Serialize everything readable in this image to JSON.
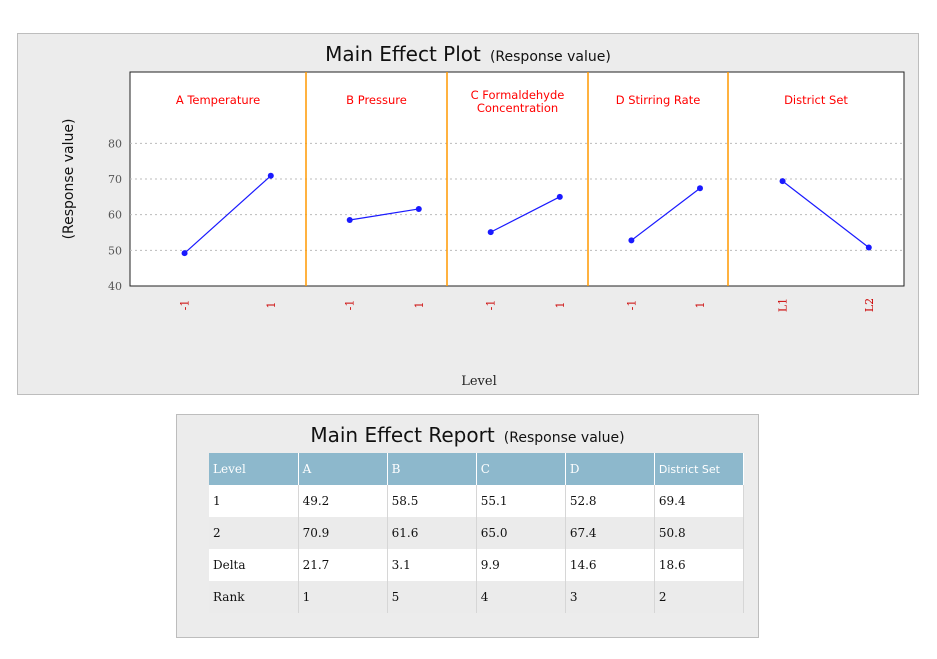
{
  "plot": {
    "title": "Main Effect Plot",
    "subtitle": "(Response value)"
  },
  "chart_data": {
    "type": "line",
    "title": "Main Effect Plot",
    "subtitle": "(Response value)",
    "xlabel": "Level",
    "ylabel": "(Response value)",
    "ylim": [
      40,
      100
    ],
    "yticks": [
      40,
      50,
      60,
      70,
      80
    ],
    "grid": true,
    "panels": [
      {
        "name": "A Temperature",
        "levels": [
          "-1",
          "1"
        ],
        "values": [
          49.2,
          70.9
        ]
      },
      {
        "name": "B Pressure",
        "levels": [
          "-1",
          "1"
        ],
        "values": [
          58.5,
          61.6
        ]
      },
      {
        "name": "C Formaldehyde Concentration",
        "levels": [
          "-1",
          "1"
        ],
        "values": [
          55.1,
          65.0
        ]
      },
      {
        "name": "D Stirring Rate",
        "levels": [
          "-1",
          "1"
        ],
        "values": [
          52.8,
          67.4
        ]
      },
      {
        "name": "District Set",
        "levels": [
          "L1",
          "L2"
        ],
        "values": [
          69.4,
          50.8
        ]
      }
    ],
    "colors": {
      "line": "#1a1aff",
      "panel_title": "#ff0000",
      "divider": "#ff9900",
      "tick_label": "#cc0000"
    }
  },
  "report": {
    "title": "Main Effect Report",
    "subtitle": "(Response value)",
    "columns": [
      "Level",
      "A",
      "B",
      "C",
      "D",
      "District Set"
    ],
    "rows": [
      [
        "1",
        "49.2",
        "58.5",
        "55.1",
        "52.8",
        "69.4"
      ],
      [
        "2",
        "70.9",
        "61.6",
        "65.0",
        "67.4",
        "50.8"
      ],
      [
        "Delta",
        "21.7",
        "3.1",
        "9.9",
        "14.6",
        "18.6"
      ],
      [
        "Rank",
        "1",
        "5",
        "4",
        "3",
        "2"
      ]
    ]
  }
}
